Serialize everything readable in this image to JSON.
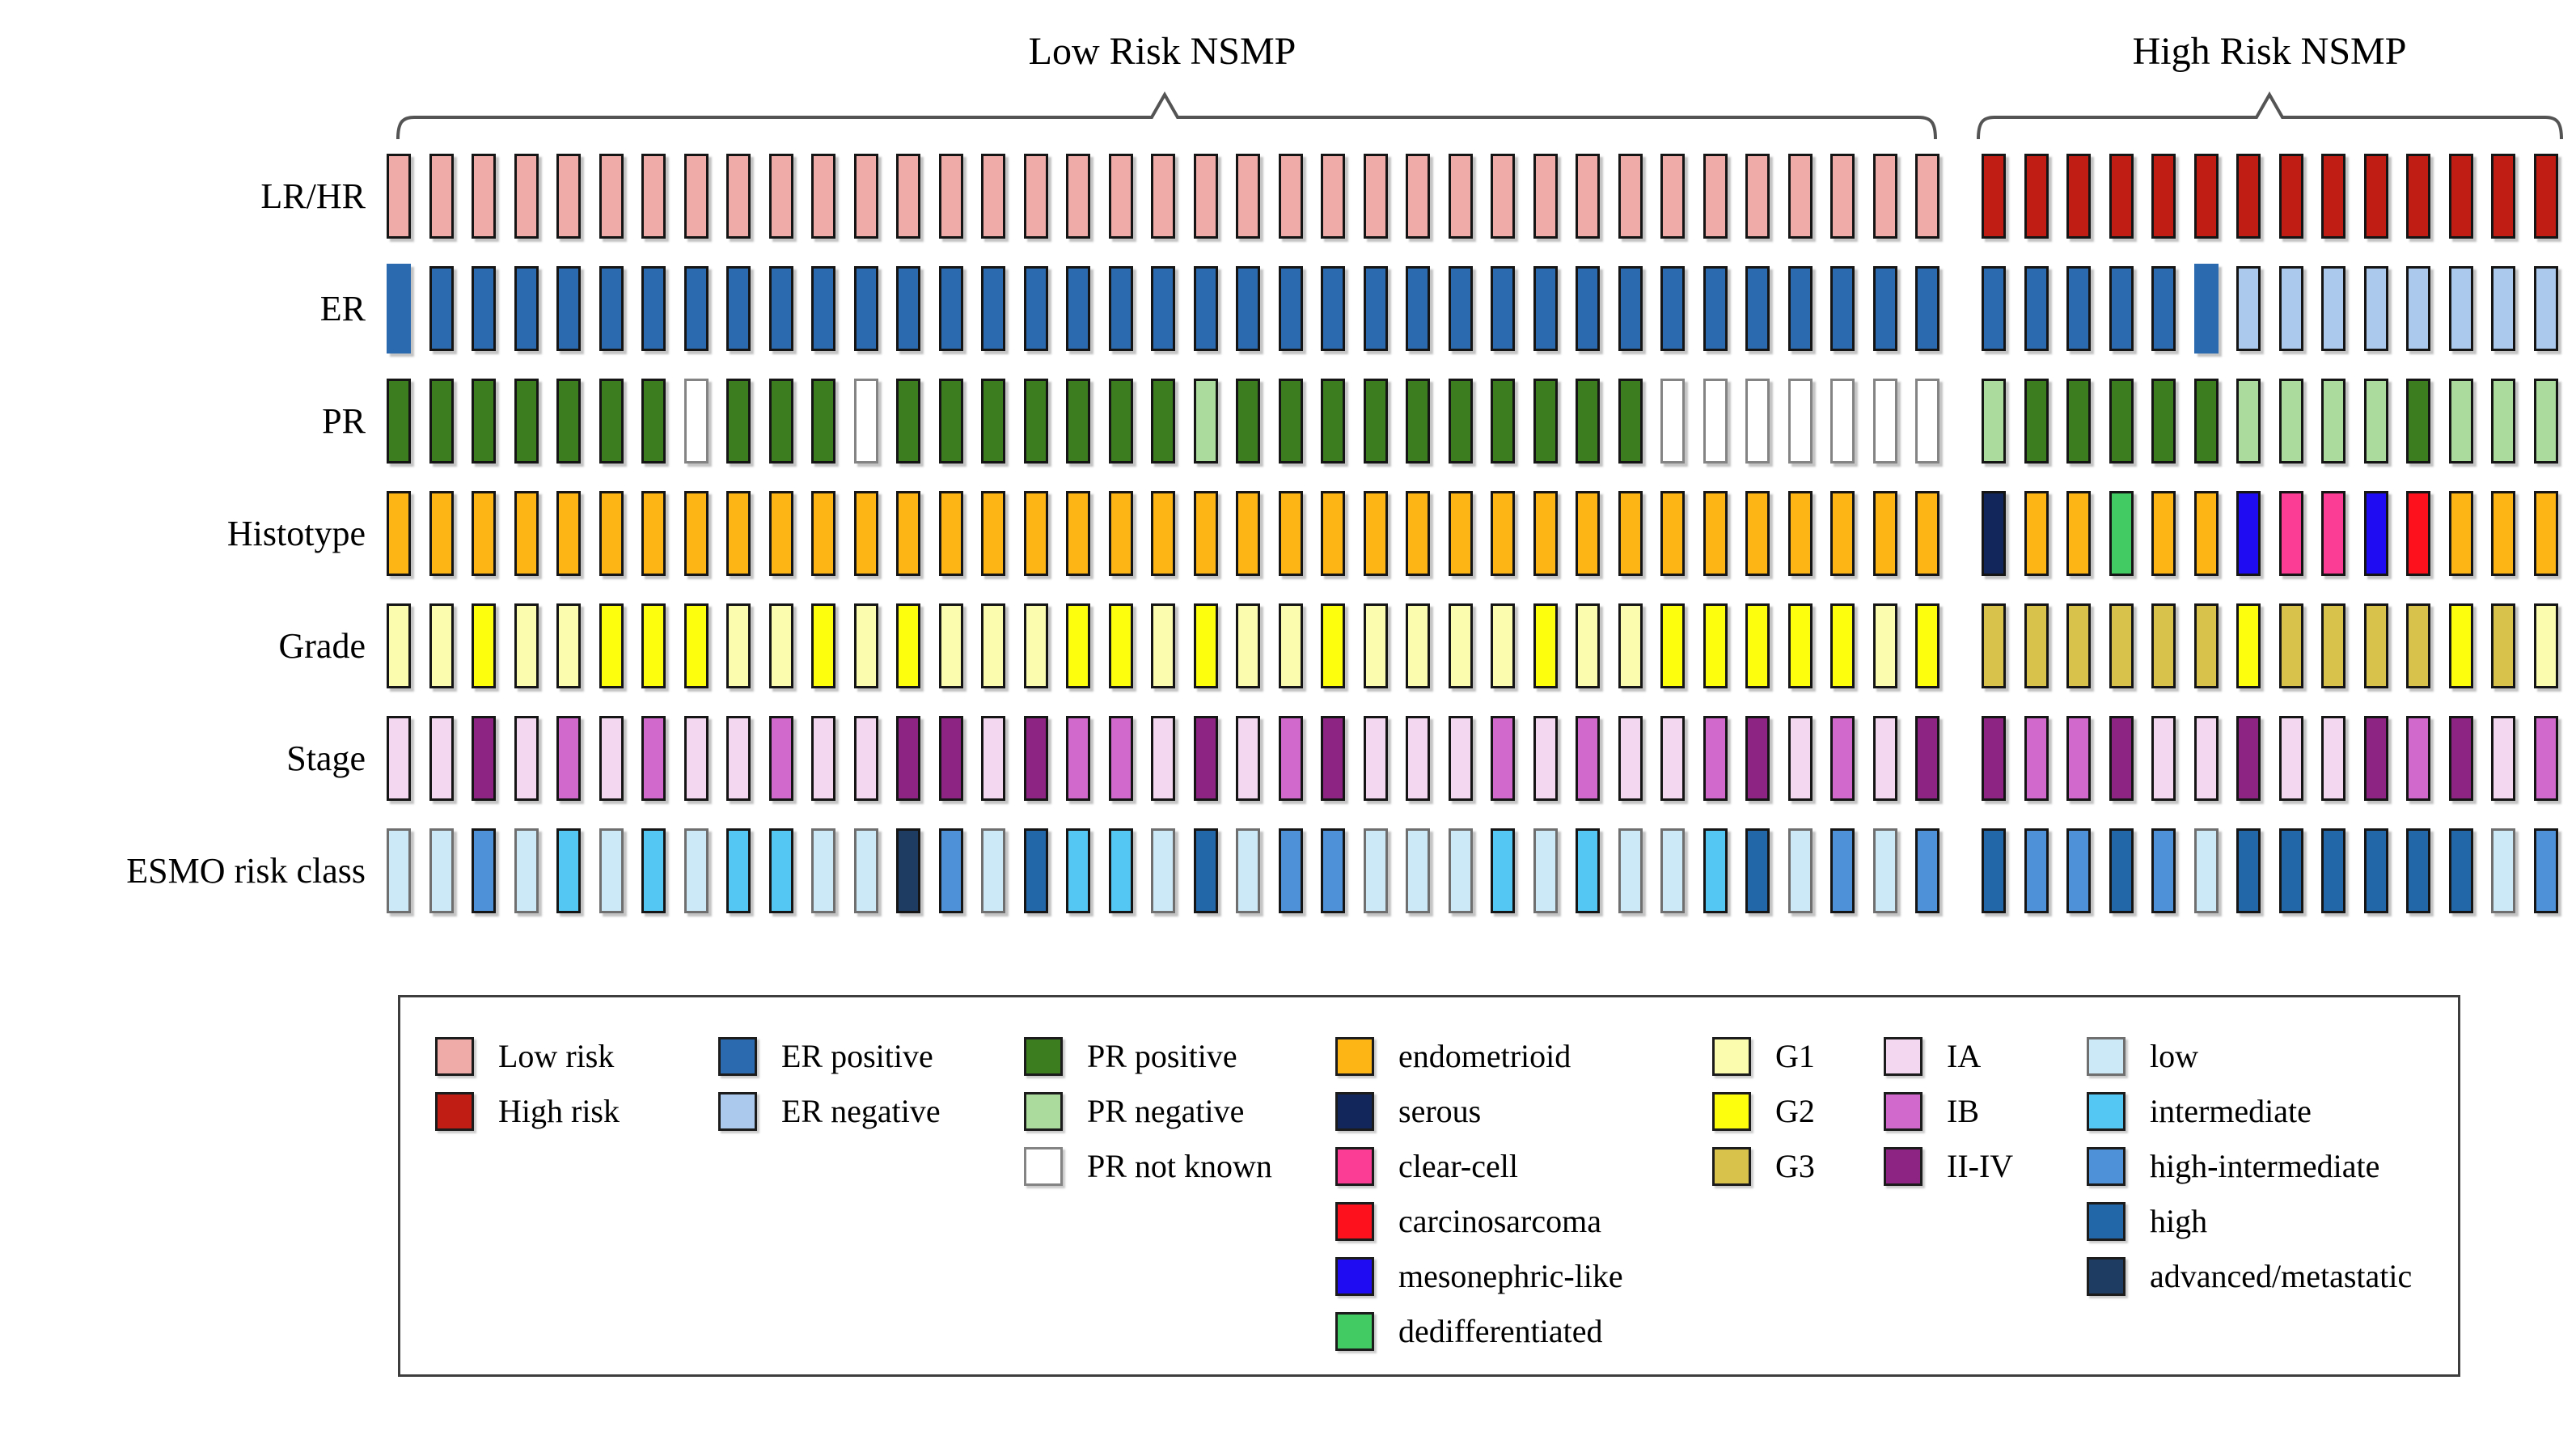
{
  "figure": {
    "group_titles": {
      "low": "Low Risk NSMP",
      "high": "High Risk NSMP"
    }
  },
  "chart_data": {
    "type": "heatmap",
    "subtype": "oncoprint-style categorical patient matrix",
    "n_columns": 51,
    "column_groups": [
      {
        "label": "Low Risk NSMP",
        "count": 37
      },
      {
        "label": "High Risk NSMP",
        "count": 14
      }
    ],
    "categories": {
      "LR": {
        "label": "Low risk",
        "color": "#efaba7"
      },
      "HR": {
        "label": "High risk",
        "color": "#c01d14"
      },
      "ER+": {
        "label": "ER positive",
        "color": "#2b6aae"
      },
      "ER-": {
        "label": "ER negative",
        "color": "#abc9ec"
      },
      "PR+": {
        "label": "PR positive",
        "color": "#3c7d20"
      },
      "PR-": {
        "label": "PR negative",
        "color": "#abdc9d"
      },
      "PR?": {
        "label": "PR not known",
        "color": "#ffffff",
        "border": "#848484"
      },
      "EC": {
        "label": "endometrioid",
        "color": "#fcb515"
      },
      "SE": {
        "label": "serous",
        "color": "#13265c"
      },
      "CC": {
        "label": "clear-cell",
        "color": "#fb3d96"
      },
      "CS": {
        "label": "carcinosarcoma",
        "color": "#fc111c"
      },
      "ML": {
        "label": "mesonephric-like",
        "color": "#1f0cf2"
      },
      "DD": {
        "label": "dedifferentiated",
        "color": "#42ca63"
      },
      "G1": {
        "label": "G1",
        "color": "#fcfcae"
      },
      "G2": {
        "label": "G2",
        "color": "#fdfd0e"
      },
      "G3": {
        "label": "G3",
        "color": "#d9c24b"
      },
      "IA": {
        "label": "IA",
        "color": "#f3d6ef"
      },
      "IB": {
        "label": "IB",
        "color": "#d168cb"
      },
      "II-IV": {
        "label": "II-IV",
        "color": "#8d2484"
      },
      "lo": {
        "label": "low",
        "color": "#cce9f8",
        "border": "#6f6f6f"
      },
      "in": {
        "label": "intermediate",
        "color": "#55c7f3"
      },
      "hi-int": {
        "label": "high-intermediate",
        "color": "#4f91d9"
      },
      "hi": {
        "label": "high",
        "color": "#2267a7"
      },
      "adv": {
        "label": "advanced/metastatic",
        "color": "#1e3c61"
      }
    },
    "rows": [
      {
        "key": "lrhr",
        "label": "LR/HR",
        "values": [
          "LR",
          "LR",
          "LR",
          "LR",
          "LR",
          "LR",
          "LR",
          "LR",
          "LR",
          "LR",
          "LR",
          "LR",
          "LR",
          "LR",
          "LR",
          "LR",
          "LR",
          "LR",
          "LR",
          "LR",
          "LR",
          "LR",
          "LR",
          "LR",
          "LR",
          "LR",
          "LR",
          "LR",
          "LR",
          "LR",
          "LR",
          "LR",
          "LR",
          "LR",
          "LR",
          "LR",
          "LR",
          "HR",
          "HR",
          "HR",
          "HR",
          "HR",
          "HR",
          "HR",
          "HR",
          "HR",
          "HR",
          "HR",
          "HR",
          "HR",
          "HR"
        ]
      },
      {
        "key": "er",
        "label": "ER",
        "borderless": [
          1,
          43
        ],
        "values": [
          "ER+",
          "ER+",
          "ER+",
          "ER+",
          "ER+",
          "ER+",
          "ER+",
          "ER+",
          "ER+",
          "ER+",
          "ER+",
          "ER+",
          "ER+",
          "ER+",
          "ER+",
          "ER+",
          "ER+",
          "ER+",
          "ER+",
          "ER+",
          "ER+",
          "ER+",
          "ER+",
          "ER+",
          "ER+",
          "ER+",
          "ER+",
          "ER+",
          "ER+",
          "ER+",
          "ER+",
          "ER+",
          "ER+",
          "ER+",
          "ER+",
          "ER+",
          "ER+",
          "ER+",
          "ER+",
          "ER+",
          "ER+",
          "ER+",
          "ER+",
          "ER-",
          "ER-",
          "ER-",
          "ER-",
          "ER-",
          "ER-",
          "ER-",
          "ER-"
        ]
      },
      {
        "key": "pr",
        "label": "PR",
        "values": [
          "PR+",
          "PR+",
          "PR+",
          "PR+",
          "PR+",
          "PR+",
          "PR+",
          "PR?",
          "PR+",
          "PR+",
          "PR+",
          "PR?",
          "PR+",
          "PR+",
          "PR+",
          "PR+",
          "PR+",
          "PR+",
          "PR+",
          "PR-",
          "PR+",
          "PR+",
          "PR+",
          "PR+",
          "PR+",
          "PR+",
          "PR+",
          "PR+",
          "PR+",
          "PR+",
          "PR?",
          "PR?",
          "PR?",
          "PR?",
          "PR?",
          "PR?",
          "PR?",
          "PR-",
          "PR+",
          "PR+",
          "PR+",
          "PR+",
          "PR+",
          "PR-",
          "PR-",
          "PR-",
          "PR-",
          "PR+",
          "PR-",
          "PR-",
          "PR-"
        ]
      },
      {
        "key": "histotype",
        "label": "Histotype",
        "values": [
          "EC",
          "EC",
          "EC",
          "EC",
          "EC",
          "EC",
          "EC",
          "EC",
          "EC",
          "EC",
          "EC",
          "EC",
          "EC",
          "EC",
          "EC",
          "EC",
          "EC",
          "EC",
          "EC",
          "EC",
          "EC",
          "EC",
          "EC",
          "EC",
          "EC",
          "EC",
          "EC",
          "EC",
          "EC",
          "EC",
          "EC",
          "EC",
          "EC",
          "EC",
          "EC",
          "EC",
          "EC",
          "SE",
          "EC",
          "EC",
          "DD",
          "EC",
          "EC",
          "ML",
          "CC",
          "CC",
          "ML",
          "CS",
          "EC",
          "EC",
          "EC"
        ]
      },
      {
        "key": "grade",
        "label": "Grade",
        "values": [
          "G1",
          "G1",
          "G2",
          "G1",
          "G1",
          "G2",
          "G2",
          "G2",
          "G1",
          "G1",
          "G2",
          "G1",
          "G2",
          "G1",
          "G1",
          "G1",
          "G2",
          "G2",
          "G1",
          "G2",
          "G1",
          "G1",
          "G2",
          "G1",
          "G1",
          "G1",
          "G1",
          "G2",
          "G1",
          "G1",
          "G2",
          "G2",
          "G2",
          "G2",
          "G2",
          "G1",
          "G2",
          "G3",
          "G3",
          "G3",
          "G3",
          "G3",
          "G3",
          "G2",
          "G3",
          "G3",
          "G3",
          "G3",
          "G2",
          "G3",
          "G1"
        ]
      },
      {
        "key": "stage",
        "label": "Stage",
        "values": [
          "IA",
          "IA",
          "II-IV",
          "IA",
          "IB",
          "IA",
          "IB",
          "IA",
          "IA",
          "IB",
          "IA",
          "IA",
          "II-IV",
          "II-IV",
          "IA",
          "II-IV",
          "IB",
          "IB",
          "IA",
          "II-IV",
          "IA",
          "IB",
          "II-IV",
          "IA",
          "IA",
          "IA",
          "IB",
          "IA",
          "IB",
          "IA",
          "IA",
          "IB",
          "II-IV",
          "IA",
          "IB",
          "IA",
          "II-IV",
          "II-IV",
          "IB",
          "IB",
          "II-IV",
          "IA",
          "IA",
          "II-IV",
          "IA",
          "IA",
          "II-IV",
          "IB",
          "II-IV",
          "IA",
          "IB"
        ]
      },
      {
        "key": "esmo",
        "label": "ESMO risk class",
        "values": [
          "lo",
          "lo",
          "hi-int",
          "lo",
          "in",
          "lo",
          "in",
          "lo",
          "in",
          "in",
          "lo",
          "lo",
          "adv",
          "hi-int",
          "lo",
          "hi",
          "in",
          "in",
          "lo",
          "hi",
          "lo",
          "hi-int",
          "hi-int",
          "lo",
          "lo",
          "lo",
          "in",
          "lo",
          "in",
          "lo",
          "lo",
          "in",
          "hi",
          "lo",
          "hi-int",
          "lo",
          "hi-int",
          "hi",
          "hi-int",
          "hi-int",
          "hi",
          "hi-int",
          "lo",
          "hi",
          "hi",
          "hi",
          "hi",
          "hi",
          "hi",
          "lo",
          "hi-int"
        ]
      }
    ]
  },
  "legend": {
    "groups": [
      {
        "name": "risk-group",
        "items": [
          "LR",
          "HR"
        ]
      },
      {
        "name": "er-status",
        "items": [
          "ER+",
          "ER-"
        ]
      },
      {
        "name": "pr-status",
        "items": [
          "PR+",
          "PR-",
          "PR?"
        ]
      },
      {
        "name": "histotype",
        "items": [
          "EC",
          "SE",
          "CC",
          "CS",
          "ML",
          "DD"
        ]
      },
      {
        "name": "grade",
        "items": [
          "G1",
          "G2",
          "G3"
        ]
      },
      {
        "name": "stage",
        "items": [
          "IA",
          "IB",
          "II-IV"
        ]
      },
      {
        "name": "esmo-class",
        "items": [
          "lo",
          "in",
          "hi-int",
          "hi",
          "adv"
        ]
      }
    ]
  }
}
